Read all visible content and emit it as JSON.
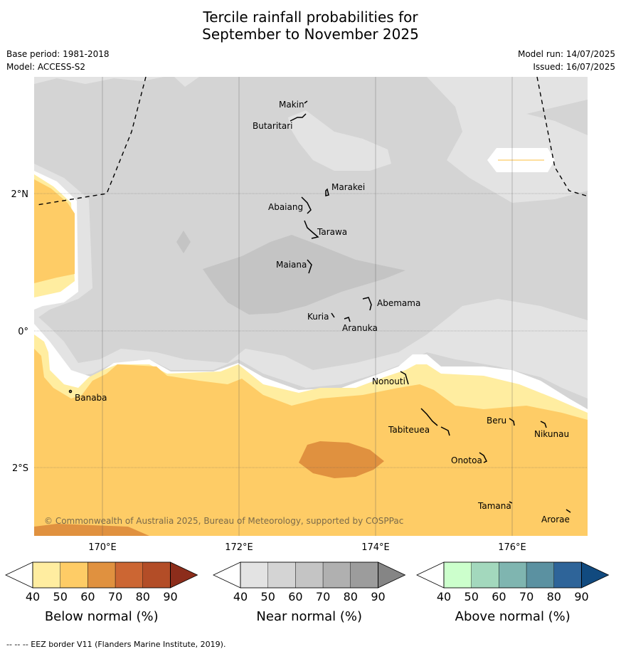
{
  "title_line1": "Tercile rainfall probabilities for",
  "title_line2": "September to November 2025",
  "meta": {
    "base_period": "Base period: 1981-2018",
    "model": "Model: ACCESS-S2",
    "model_run": "Model run: 14/07/2025",
    "issued": "Issued: 16/07/2025"
  },
  "map": {
    "lat_labels": [
      "2°N",
      "0°",
      "2°S"
    ],
    "lon_labels": [
      "170°E",
      "172°E",
      "174°E",
      "176°E"
    ],
    "places": [
      {
        "name": "Makin"
      },
      {
        "name": "Butaritari"
      },
      {
        "name": "Marakei"
      },
      {
        "name": "Abaiang"
      },
      {
        "name": "Tarawa"
      },
      {
        "name": "Maiana"
      },
      {
        "name": "Abemama"
      },
      {
        "name": "Kuria"
      },
      {
        "name": "Aranuka"
      },
      {
        "name": "Nonouti"
      },
      {
        "name": "Banaba"
      },
      {
        "name": "Tabiteuea"
      },
      {
        "name": "Beru"
      },
      {
        "name": "Nikunau"
      },
      {
        "name": "Onotoa"
      },
      {
        "name": "Tamana"
      },
      {
        "name": "Arorae"
      }
    ],
    "copyright": "© Commonwealth of Australia 2025, Bureau of Meteorology, supported by COSPPac"
  },
  "legends": [
    {
      "label": "Below normal (%)",
      "ticks": [
        "40",
        "50",
        "60",
        "70",
        "80",
        "90"
      ],
      "colors": [
        "#ffffff",
        "#ffeda0",
        "#fecc66",
        "#e0913f",
        "#cc6633",
        "#b34d27",
        "#8c2d1b"
      ]
    },
    {
      "label": "Near normal (%)",
      "ticks": [
        "40",
        "50",
        "60",
        "70",
        "80",
        "90"
      ],
      "colors": [
        "#ffffff",
        "#e3e3e3",
        "#d4d4d4",
        "#c4c4c4",
        "#b0b0b0",
        "#9c9c9c",
        "#858585"
      ]
    },
    {
      "label": "Above normal (%)",
      "ticks": [
        "40",
        "50",
        "60",
        "70",
        "80",
        "90"
      ],
      "colors": [
        "#ffffff",
        "#ccffcc",
        "#a3d8bd",
        "#7fb5b0",
        "#5b91a1",
        "#2e6499",
        "#114a7f"
      ]
    }
  ],
  "footer": "--  --  -- EEZ border V11 (Flanders Marine Institute, 2019)."
}
